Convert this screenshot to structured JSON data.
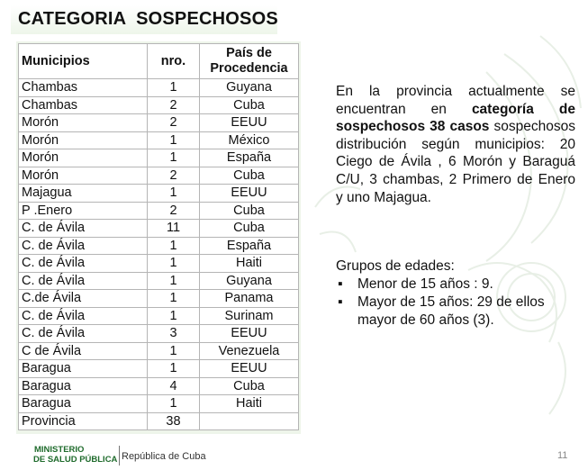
{
  "title": "CATEGORIA  SOSPECHOSOS",
  "table": {
    "headers": [
      "Municipios",
      "nro.",
      "País de Procedencia"
    ],
    "rows": [
      [
        "Chambas",
        "1",
        "Guyana"
      ],
      [
        "Chambas",
        "2",
        "Cuba"
      ],
      [
        "Morón",
        "2",
        "EEUU"
      ],
      [
        "Morón",
        "1",
        "México"
      ],
      [
        "Morón",
        "1",
        "España"
      ],
      [
        "Morón",
        "2",
        "Cuba"
      ],
      [
        "Majagua",
        "1",
        "EEUU"
      ],
      [
        "P .Enero",
        "2",
        "Cuba"
      ],
      [
        "C. de Ávila",
        "11",
        "Cuba"
      ],
      [
        "C. de Ávila",
        "1",
        "España"
      ],
      [
        "C. de Ávila",
        "1",
        "Haiti"
      ],
      [
        "C. de Ávila",
        "1",
        "Guyana"
      ],
      [
        "C.de Ávila",
        "1",
        "Panama"
      ],
      [
        "C. de Ávila",
        "1",
        "Surinam"
      ],
      [
        "C. de Ávila",
        "3",
        "EEUU"
      ],
      [
        "C de Ávila",
        "1",
        "Venezuela"
      ],
      [
        "Baragua",
        "1",
        "EEUU"
      ],
      [
        "Baragua",
        "4",
        "Cuba"
      ],
      [
        "Baragua",
        "1",
        "Haiti"
      ],
      [
        "Provincia",
        "38",
        ""
      ]
    ]
  },
  "paragraph": {
    "part1": "En la provincia  actualmente se encuentran en ",
    "bold": "categoría de sospechosos 38 casos",
    "part2": " sospechosos distribución según municipios: 20 Ciego de Ávila , 6 Morón y Baraguá  C/U, 3 chambas, 2  Primero de Enero  y uno  Majagua."
  },
  "age_groups": {
    "heading": "Grupos de edades:",
    "bullet": "▪",
    "items": [
      "Menor de 15 años : 9.",
      "Mayor de  15 años: 29 de ellos mayor de 60 años (3)."
    ]
  },
  "footer": {
    "ministry_line1": "MINISTERIO",
    "ministry_line2": "DE SALUD PÚBLICA",
    "republic": "República de Cuba",
    "page_number": "11"
  }
}
